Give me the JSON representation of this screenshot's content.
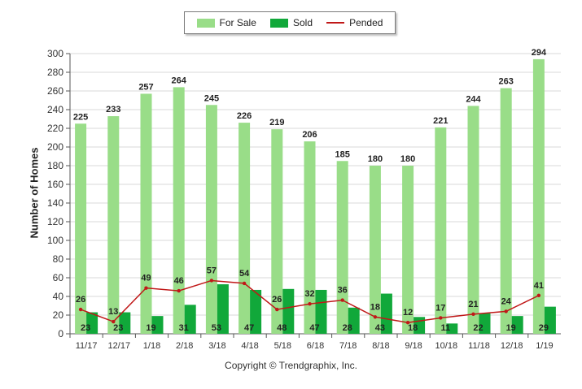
{
  "chart_data": {
    "type": "bar",
    "categories": [
      "11/17",
      "12/17",
      "1/18",
      "2/18",
      "3/18",
      "4/18",
      "5/18",
      "6/18",
      "7/18",
      "8/18",
      "9/18",
      "10/18",
      "11/18",
      "12/18",
      "1/19"
    ],
    "series": [
      {
        "name": "For Sale",
        "type": "bar",
        "color": "#99dd88",
        "values": [
          225,
          233,
          257,
          264,
          245,
          226,
          219,
          206,
          185,
          180,
          180,
          221,
          244,
          263,
          294
        ]
      },
      {
        "name": "Sold",
        "type": "bar",
        "color": "#11a83a",
        "values": [
          23,
          23,
          19,
          31,
          53,
          47,
          48,
          47,
          28,
          43,
          18,
          11,
          22,
          19,
          29
        ]
      },
      {
        "name": "Pended",
        "type": "line",
        "color": "#c01818",
        "values": [
          26,
          13,
          49,
          46,
          57,
          54,
          26,
          32,
          36,
          18,
          12,
          17,
          21,
          24,
          41
        ]
      }
    ],
    "ylabel": "Number of Homes",
    "ylim": [
      0,
      300
    ],
    "yticks": [
      0,
      20,
      40,
      60,
      80,
      100,
      120,
      140,
      160,
      180,
      200,
      220,
      240,
      260,
      280,
      300
    ],
    "grid": true,
    "legend": "top-center"
  },
  "footer": "Copyright © Trendgraphix, Inc."
}
